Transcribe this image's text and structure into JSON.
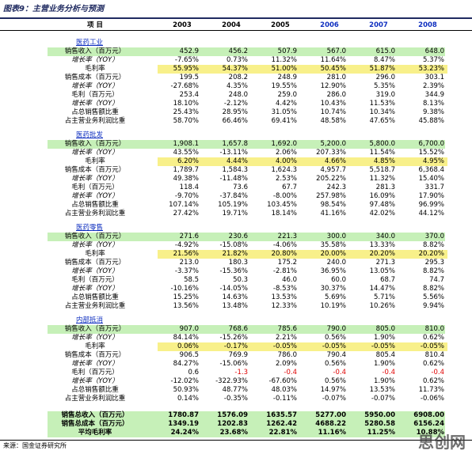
{
  "title": "图表9：主营业务分析与预测",
  "header": {
    "label": "项 目",
    "years": [
      "2003",
      "2004",
      "2005",
      "2006",
      "2007",
      "2008"
    ]
  },
  "sections": [
    {
      "name": "医药工业",
      "rows": [
        {
          "label": "销售收入（百万元）",
          "values": [
            "452.9",
            "456.2",
            "507.9",
            "567.0",
            "615.0",
            "648.0"
          ]
        },
        {
          "label": "增长率（YOY）",
          "values": [
            "-7.65%",
            "0.73%",
            "11.32%",
            "11.64%",
            "8.47%",
            "5.37%"
          ]
        },
        {
          "label": "毛利率",
          "values": [
            "55.95%",
            "54.37%",
            "51.00%",
            "50.45%",
            "51.87%",
            "53.23%"
          ]
        },
        {
          "label": "销售成本（百万元）",
          "values": [
            "199.5",
            "208.2",
            "248.9",
            "281.0",
            "296.0",
            "303.1"
          ]
        },
        {
          "label": "增长率（YOY）",
          "values": [
            "-27.68%",
            "4.35%",
            "19.55%",
            "12.90%",
            "5.35%",
            "2.39%"
          ]
        },
        {
          "label": "毛利（百万元）",
          "values": [
            "253.4",
            "248.0",
            "259.0",
            "286.0",
            "319.0",
            "344.9"
          ]
        },
        {
          "label": "增长率（YOY）",
          "values": [
            "18.10%",
            "-2.12%",
            "4.42%",
            "10.43%",
            "11.53%",
            "8.13%"
          ]
        },
        {
          "label": "占总销售额比重",
          "values": [
            "25.43%",
            "28.95%",
            "31.05%",
            "10.74%",
            "10.34%",
            "9.38%"
          ]
        },
        {
          "label": "占主营业务利润比重",
          "values": [
            "58.70%",
            "66.46%",
            "69.41%",
            "48.58%",
            "47.65%",
            "45.88%"
          ]
        }
      ]
    },
    {
      "name": "医药批发",
      "rows": [
        {
          "label": "销售收入（百万元）",
          "values": [
            "1,908.1",
            "1,657.8",
            "1,692.0",
            "5,200.0",
            "5,800.0",
            "6,700.0"
          ]
        },
        {
          "label": "增长率（YOY）",
          "values": [
            "43.55%",
            "-13.11%",
            "2.06%",
            "207.33%",
            "11.54%",
            "15.52%"
          ]
        },
        {
          "label": "毛利率",
          "values": [
            "6.20%",
            "4.44%",
            "4.00%",
            "4.66%",
            "4.85%",
            "4.95%"
          ]
        },
        {
          "label": "销售成本（百万元）",
          "values": [
            "1,789.7",
            "1,584.3",
            "1,624.3",
            "4,957.7",
            "5,518.7",
            "6,368.4"
          ]
        },
        {
          "label": "增长率（YOY）",
          "values": [
            "49.38%",
            "-11.48%",
            "2.53%",
            "205.22%",
            "11.32%",
            "15.40%"
          ]
        },
        {
          "label": "毛利（百万元）",
          "values": [
            "118.4",
            "73.6",
            "67.7",
            "242.3",
            "281.3",
            "331.7"
          ]
        },
        {
          "label": "增长率（YOY）",
          "values": [
            "-9.70%",
            "-37.84%",
            "-8.00%",
            "257.98%",
            "16.09%",
            "17.90%"
          ]
        },
        {
          "label": "占总销售额比重",
          "values": [
            "107.14%",
            "105.19%",
            "103.45%",
            "98.54%",
            "97.48%",
            "96.99%"
          ]
        },
        {
          "label": "占主营业务利润比重",
          "values": [
            "27.42%",
            "19.71%",
            "18.14%",
            "41.16%",
            "42.02%",
            "44.12%"
          ]
        }
      ]
    },
    {
      "name": "医药零售",
      "rows": [
        {
          "label": "销售收入（百万元）",
          "values": [
            "271.6",
            "230.6",
            "221.3",
            "300.0",
            "340.0",
            "370.0"
          ]
        },
        {
          "label": "增长率（YOY）",
          "values": [
            "-4.92%",
            "-15.08%",
            "-4.06%",
            "35.58%",
            "13.33%",
            "8.82%"
          ]
        },
        {
          "label": "毛利率",
          "values": [
            "21.56%",
            "21.82%",
            "20.80%",
            "20.00%",
            "20.20%",
            "20.20%"
          ]
        },
        {
          "label": "销售成本（百万元）",
          "values": [
            "213.0",
            "180.3",
            "175.2",
            "240.0",
            "271.3",
            "295.3"
          ]
        },
        {
          "label": "增长率（YOY）",
          "values": [
            "-3.37%",
            "-15.36%",
            "-2.81%",
            "36.95%",
            "13.05%",
            "8.82%"
          ]
        },
        {
          "label": "毛利（百万元）",
          "values": [
            "58.5",
            "50.3",
            "46.0",
            "60.0",
            "68.7",
            "74.7"
          ]
        },
        {
          "label": "增长率（YOY）",
          "values": [
            "-10.16%",
            "-14.05%",
            "-8.53%",
            "30.37%",
            "14.47%",
            "8.82%"
          ]
        },
        {
          "label": "占总销售额比重",
          "values": [
            "15.25%",
            "14.63%",
            "13.53%",
            "5.69%",
            "5.71%",
            "5.56%"
          ]
        },
        {
          "label": "占主营业务利润比重",
          "values": [
            "13.56%",
            "13.48%",
            "12.33%",
            "10.19%",
            "10.26%",
            "9.94%"
          ]
        }
      ]
    },
    {
      "name": "内部抵消",
      "rows": [
        {
          "label": "销售收入（百万元）",
          "values": [
            "907.0",
            "768.6",
            "785.6",
            "790.0",
            "805.0",
            "810.0"
          ]
        },
        {
          "label": "增长率（YOY）",
          "values": [
            "84.14%",
            "-15.26%",
            "2.21%",
            "0.56%",
            "1.90%",
            "0.62%"
          ]
        },
        {
          "label": "毛利率",
          "values": [
            "0.06%",
            "-0.17%",
            "-0.05%",
            "-0.05%",
            "-0.05%",
            "-0.05%"
          ]
        },
        {
          "label": "销售成本（百万元）",
          "values": [
            "906.5",
            "769.9",
            "786.0",
            "790.4",
            "805.4",
            "810.4"
          ]
        },
        {
          "label": "增长率（YOY）",
          "values": [
            "84.27%",
            "-15.06%",
            "2.09%",
            "0.56%",
            "1.90%",
            "0.62%"
          ]
        },
        {
          "label": "毛利（百万元）",
          "values": [
            "0.6",
            "-1.3",
            "-0.4",
            "-0.4",
            "-0.4",
            "-0.4"
          ]
        },
        {
          "label": "增长率（YOY）",
          "values": [
            "-12.02%",
            "-322.93%",
            "-67.60%",
            "0.56%",
            "1.90%",
            "0.62%"
          ]
        },
        {
          "label": "占总销售额比重",
          "values": [
            "50.93%",
            "48.77%",
            "48.03%",
            "14.97%",
            "13.53%",
            "11.73%"
          ]
        },
        {
          "label": "占主营业务利润比重",
          "values": [
            "0.14%",
            "-0.35%",
            "-0.11%",
            "-0.07%",
            "-0.07%",
            "-0.06%"
          ]
        }
      ]
    }
  ],
  "totals": [
    {
      "label": "销售总收入（百万元）",
      "values": [
        "1780.87",
        "1576.09",
        "1635.57",
        "5277.00",
        "5950.00",
        "6908.00"
      ]
    },
    {
      "label": "销售总成本（百万元）",
      "values": [
        "1349.19",
        "1202.83",
        "1262.42",
        "4688.22",
        "5280.58",
        "6156.24"
      ]
    },
    {
      "label": "平均毛利率",
      "values": [
        "24.24%",
        "23.68%",
        "22.81%",
        "11.16%",
        "11.25%",
        "10.88%"
      ]
    }
  ],
  "source": "来源：国金证券研究所",
  "watermark": "思创网"
}
